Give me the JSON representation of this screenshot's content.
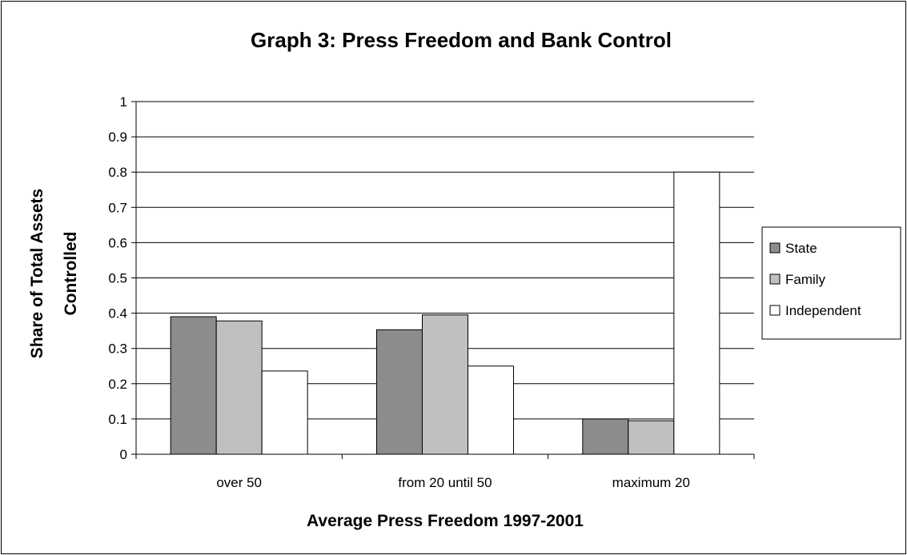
{
  "chart_data": {
    "type": "bar",
    "title": "Graph 3: Press Freedom and Bank Control",
    "xlabel": "Average Press Freedom 1997-2001",
    "ylabel": "Share of Total Assets Controlled",
    "ylabel_lines": [
      "Share of Total Assets",
      "Controlled"
    ],
    "categories": [
      "over 50",
      "from 20 until 50",
      "maximum 20"
    ],
    "series": [
      {
        "name": "State",
        "color": "#8c8c8c",
        "values": [
          0.39,
          0.353,
          0.1
        ]
      },
      {
        "name": "Family",
        "color": "#c0c0c0",
        "values": [
          0.378,
          0.395,
          0.095
        ]
      },
      {
        "name": "Independent",
        "color": "#ffffff",
        "values": [
          0.236,
          0.25,
          0.8
        ]
      }
    ],
    "ylim": [
      0,
      1
    ],
    "yticks": [
      "0",
      "0.1",
      "0.2",
      "0.3",
      "0.4",
      "0.5",
      "0.6",
      "0.7",
      "0.8",
      "0.9",
      "1"
    ],
    "grid": true,
    "legend_position": "right"
  }
}
